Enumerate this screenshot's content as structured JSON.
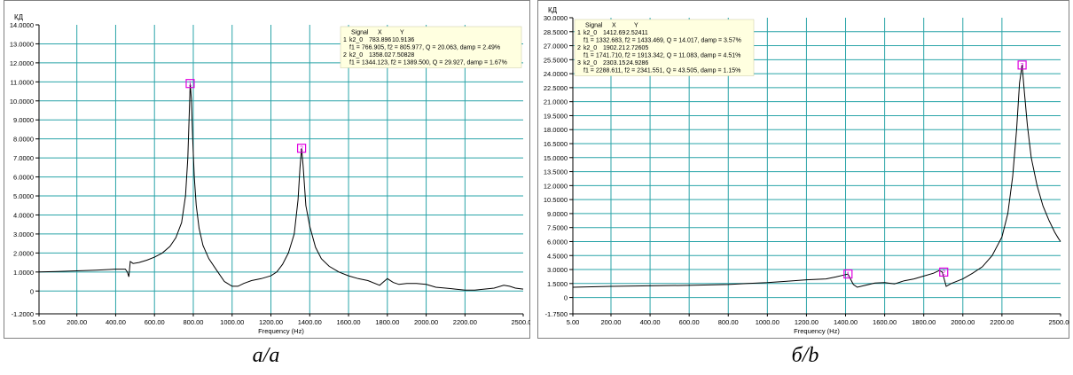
{
  "chart_data": [
    {
      "type": "line",
      "ylabel": "КД",
      "xlabel": "Frequency (Hz)",
      "xlim": [
        5,
        2500
      ],
      "ylim": [
        -1.2,
        14.0
      ],
      "grid": true,
      "y_ticks": [
        "14.0000",
        "13.0000",
        "12.0000",
        "11.0000",
        "10.0000",
        "9.0000",
        "8.0000",
        "7.0000",
        "6.0000",
        "5.0000",
        "4.0000",
        "3.0000",
        "2.0000",
        "1.0000",
        "0",
        "-1.2000"
      ],
      "x_ticks": [
        "5.00",
        "200.00",
        "400.00",
        "600.00",
        "800.00",
        "1000.00",
        "1200.00",
        "1400.00",
        "1600.00",
        "1800.00",
        "2000.00",
        "2200.00",
        "2500.00"
      ],
      "series": [
        {
          "color": "#000000",
          "points": [
            [
              5,
              1.0
            ],
            [
              100,
              1.03
            ],
            [
              200,
              1.06
            ],
            [
              300,
              1.1
            ],
            [
              400,
              1.15
            ],
            [
              450,
              1.15
            ],
            [
              460,
              1.0
            ],
            [
              468,
              0.75
            ],
            [
              475,
              1.55
            ],
            [
              490,
              1.45
            ],
            [
              520,
              1.5
            ],
            [
              560,
              1.62
            ],
            [
              600,
              1.78
            ],
            [
              640,
              2.0
            ],
            [
              680,
              2.35
            ],
            [
              710,
              2.8
            ],
            [
              740,
              3.6
            ],
            [
              760,
              5.0
            ],
            [
              772,
              7.0
            ],
            [
              780,
              9.6
            ],
            [
              784,
              10.91
            ],
            [
              790,
              10.1
            ],
            [
              797,
              8.0
            ],
            [
              805,
              6.0
            ],
            [
              815,
              4.5
            ],
            [
              830,
              3.3
            ],
            [
              850,
              2.4
            ],
            [
              880,
              1.7
            ],
            [
              920,
              1.1
            ],
            [
              960,
              0.5
            ],
            [
              1000,
              0.25
            ],
            [
              1030,
              0.25
            ],
            [
              1060,
              0.4
            ],
            [
              1100,
              0.55
            ],
            [
              1150,
              0.65
            ],
            [
              1200,
              0.8
            ],
            [
              1230,
              1.0
            ],
            [
              1260,
              1.4
            ],
            [
              1290,
              2.0
            ],
            [
              1320,
              3.0
            ],
            [
              1340,
              4.8
            ],
            [
              1350,
              6.5
            ],
            [
              1358,
              7.51
            ],
            [
              1366,
              6.6
            ],
            [
              1380,
              4.5
            ],
            [
              1400,
              3.4
            ],
            [
              1430,
              2.3
            ],
            [
              1460,
              1.7
            ],
            [
              1500,
              1.3
            ],
            [
              1550,
              1.0
            ],
            [
              1600,
              0.8
            ],
            [
              1650,
              0.65
            ],
            [
              1700,
              0.55
            ],
            [
              1760,
              0.3
            ],
            [
              1800,
              0.65
            ],
            [
              1830,
              0.45
            ],
            [
              1860,
              0.35
            ],
            [
              1900,
              0.4
            ],
            [
              1950,
              0.4
            ],
            [
              2000,
              0.35
            ],
            [
              2050,
              0.2
            ],
            [
              2100,
              0.15
            ],
            [
              2150,
              0.1
            ],
            [
              2200,
              0.05
            ],
            [
              2250,
              0.05
            ],
            [
              2300,
              0.1
            ],
            [
              2350,
              0.15
            ],
            [
              2400,
              0.3
            ],
            [
              2430,
              0.25
            ],
            [
              2460,
              0.15
            ],
            [
              2500,
              0.1
            ]
          ]
        }
      ],
      "markers": [
        {
          "label": "1",
          "x": 783.896,
          "y": 10.9136
        },
        {
          "label": "2",
          "x": 1358.02,
          "y": 7.50828
        }
      ],
      "legend": {
        "placement": "top-right",
        "header": {
          "signal": "Signal",
          "x": "X",
          "y": "Y"
        },
        "rows": [
          {
            "num": "1",
            "name": "k2_0",
            "x": "783.896",
            "y": "10.9136",
            "detail": "f1 = 766.905, f2 = 805.977, Q = 20.063, damp = 2.49%"
          },
          {
            "num": "2",
            "name": "k2_0",
            "x": "1358.02",
            "y": "7.50828",
            "detail": "f1 = 1344.123, f2 = 1389.500, Q = 29.927, damp = 1.67%"
          }
        ]
      },
      "caption": "а/a"
    },
    {
      "type": "line",
      "ylabel": "КД",
      "xlabel": "Frequency (Hz)",
      "xlim": [
        5,
        2500
      ],
      "ylim": [
        -1.75,
        30.0
      ],
      "grid": true,
      "y_ticks": [
        "30.0000",
        "28.5000",
        "27.0000",
        "25.5000",
        "24.0000",
        "22.5000",
        "21.0000",
        "19.5000",
        "18.0000",
        "16.5000",
        "15.0000",
        "13.5000",
        "12.0000",
        "10.5000",
        "9.0000",
        "7.5000",
        "6.0000",
        "4.5000",
        "3.0000",
        "1.5000",
        "0",
        "-1.7500"
      ],
      "x_ticks": [
        "5.00",
        "200.00",
        "400.00",
        "600.00",
        "800.00",
        "1000.00",
        "1200.00",
        "1400.00",
        "1600.00",
        "1800.00",
        "2000.00",
        "2200.00",
        "2500.00"
      ],
      "series": [
        {
          "color": "#000000",
          "points": [
            [
              5,
              1.1
            ],
            [
              200,
              1.2
            ],
            [
              400,
              1.25
            ],
            [
              600,
              1.3
            ],
            [
              800,
              1.4
            ],
            [
              900,
              1.5
            ],
            [
              1000,
              1.6
            ],
            [
              1100,
              1.75
            ],
            [
              1200,
              1.9
            ],
            [
              1300,
              2.0
            ],
            [
              1350,
              2.2
            ],
            [
              1390,
              2.4
            ],
            [
              1412,
              2.52
            ],
            [
              1440,
              1.4
            ],
            [
              1460,
              1.1
            ],
            [
              1500,
              1.3
            ],
            [
              1550,
              1.55
            ],
            [
              1600,
              1.6
            ],
            [
              1650,
              1.45
            ],
            [
              1700,
              1.8
            ],
            [
              1750,
              2.0
            ],
            [
              1800,
              2.3
            ],
            [
              1850,
              2.6
            ],
            [
              1880,
              2.9
            ],
            [
              1895,
              2.72
            ],
            [
              1915,
              1.2
            ],
            [
              1940,
              1.5
            ],
            [
              2000,
              2.0
            ],
            [
              2050,
              2.6
            ],
            [
              2100,
              3.3
            ],
            [
              2150,
              4.5
            ],
            [
              2200,
              6.5
            ],
            [
              2230,
              9.0
            ],
            [
              2255,
              13.0
            ],
            [
              2275,
              18.0
            ],
            [
              2290,
              23.0
            ],
            [
              2303,
              24.93
            ],
            [
              2315,
              22.0
            ],
            [
              2330,
              18.5
            ],
            [
              2350,
              15.0
            ],
            [
              2380,
              12.0
            ],
            [
              2410,
              9.8
            ],
            [
              2440,
              8.3
            ],
            [
              2470,
              7.0
            ],
            [
              2490,
              6.3
            ],
            [
              2500,
              6.0
            ]
          ]
        }
      ],
      "markers": [
        {
          "label": "1",
          "x": 1412.69,
          "y": 2.52411
        },
        {
          "label": "2",
          "x": 1902.21,
          "y": 2.72605
        },
        {
          "label": "3",
          "x": 2303.15,
          "y": 24.9286
        }
      ],
      "legend": {
        "placement": "top-left",
        "header": {
          "signal": "Signal",
          "x": "X",
          "y": "Y"
        },
        "rows": [
          {
            "num": "1",
            "name": "k2_0",
            "x": "1412.69",
            "y": "2.52411",
            "detail": "f1 = 1332.683, f2 = 1433.469, Q = 14.017, damp = 3.57%"
          },
          {
            "num": "2",
            "name": "k2_0",
            "x": "1902.21",
            "y": "2.72605",
            "detail": "f1 = 1741.710, f2 = 1913.342, Q = 11.083, damp = 4.51%"
          },
          {
            "num": "3",
            "name": "k2_0",
            "x": "2303.15",
            "y": "24.9286",
            "detail": "f1 = 2288.611, f2 = 2341.551, Q = 43.505, damp = 1.15%"
          }
        ]
      },
      "caption": "б/b"
    }
  ],
  "colors": {
    "grid": "#2aa4a8",
    "marker": "#e000e0",
    "legend_bg": "#ffffe0",
    "series": "#000000"
  }
}
